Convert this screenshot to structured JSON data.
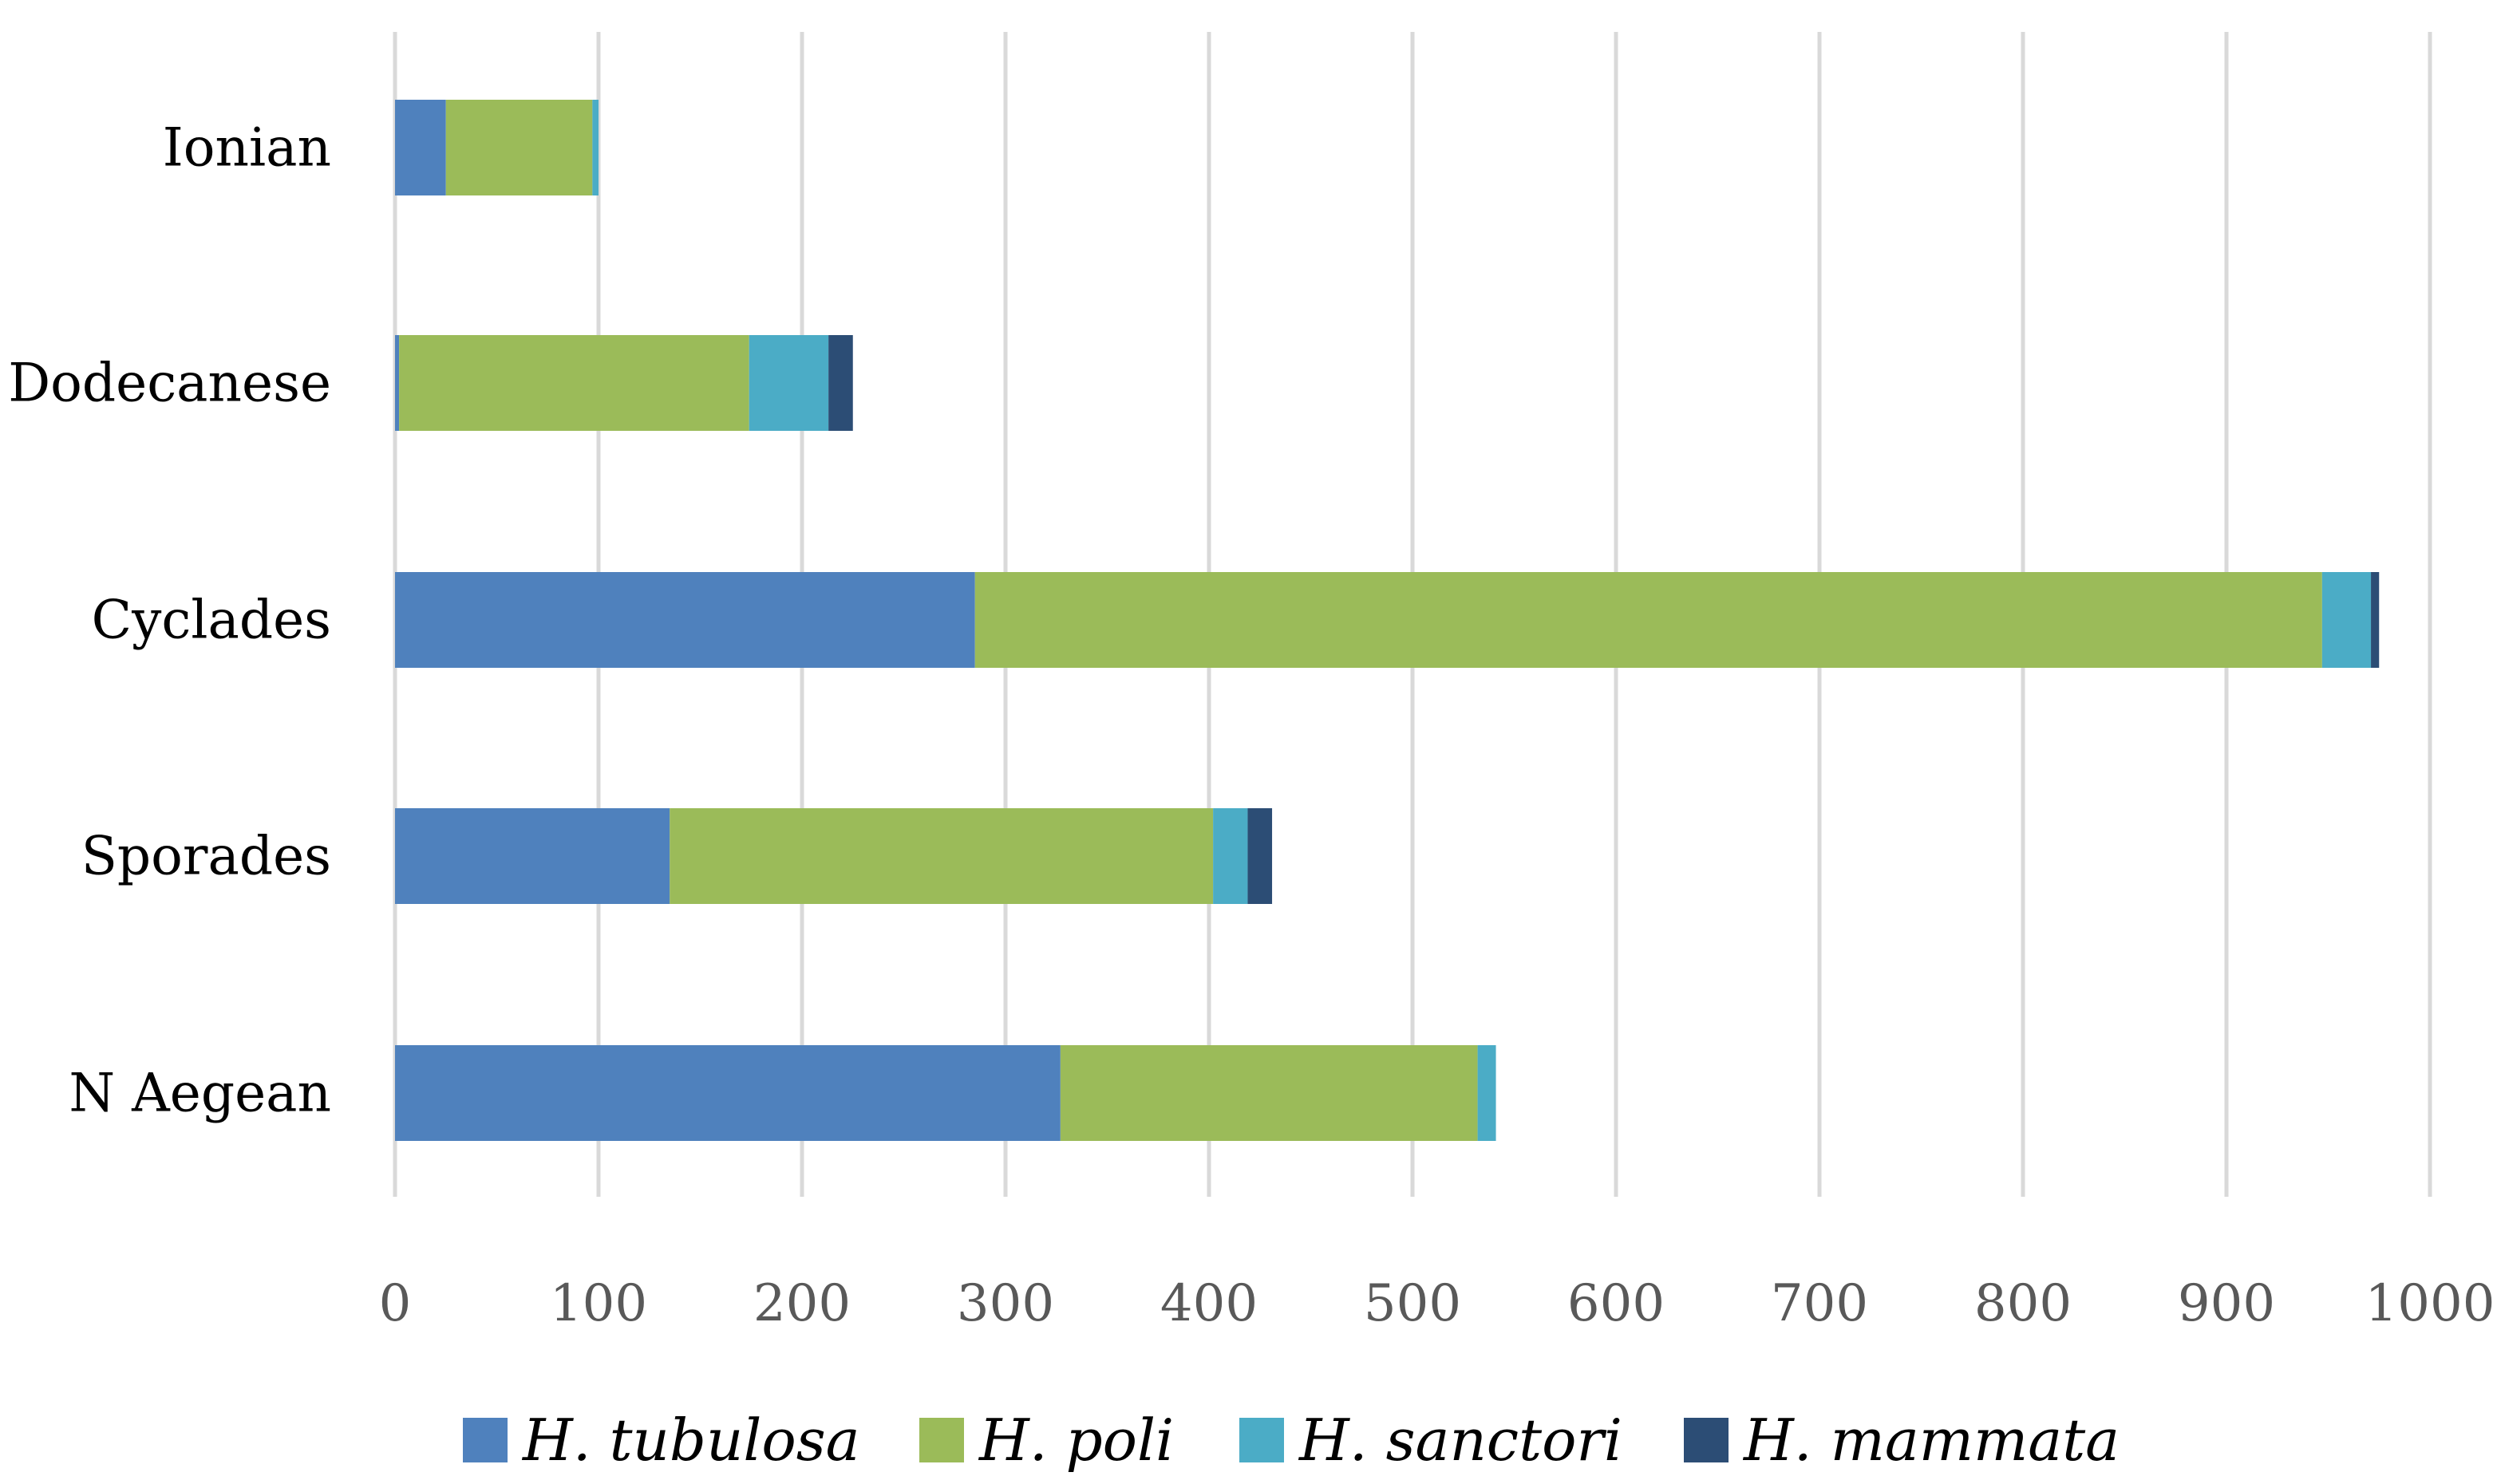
{
  "chart_data": {
    "type": "bar",
    "orientation": "horizontal",
    "stacked": true,
    "title": "",
    "xlabel": "",
    "ylabel": "",
    "xlim": [
      0,
      1000
    ],
    "x_ticks": [
      "0",
      "100",
      "200",
      "300",
      "400",
      "500",
      "600",
      "700",
      "800",
      "900",
      "1000"
    ],
    "grid": true,
    "legend_position": "bottom",
    "categories": [
      "Ionian",
      "Dodecanese",
      "Cyclades",
      "Sporades",
      "N Aegean"
    ],
    "series": [
      {
        "name": "H. tubulosa",
        "color": "#4f81bd",
        "values": [
          25,
          2,
          285,
          135,
          327
        ]
      },
      {
        "name": "H. poli",
        "color": "#9bbb59",
        "values": [
          72,
          172,
          662,
          267,
          205
        ]
      },
      {
        "name": "H. sanctori",
        "color": "#4bacc6",
        "values": [
          3,
          39,
          24,
          17,
          9
        ]
      },
      {
        "name": "H. mammata",
        "color": "#2c4d75",
        "values": [
          0,
          12,
          4,
          12,
          0
        ]
      }
    ]
  }
}
